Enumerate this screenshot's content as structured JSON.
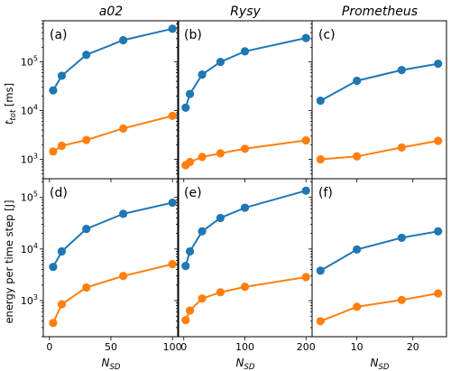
{
  "colors": {
    "series_1": "#1f77b4",
    "series_2": "#ff7f0e",
    "frame": "#000000"
  },
  "figure": {
    "column_titles": [
      "a02",
      "Rysy",
      "Prometheus"
    ],
    "row_ylabels": [
      {
        "main": "t",
        "sub": "tot",
        "rest": " [ms]"
      },
      {
        "main": "energy per time step [J]",
        "sub": "",
        "rest": ""
      }
    ],
    "xlabel": {
      "main": "N",
      "sub": "SD"
    }
  },
  "chart_data": [
    {
      "type": "line",
      "panel": "(a)",
      "title": "a02",
      "xlabel": "N_SD",
      "ylabel": "t_tot [ms]",
      "yscale": "log",
      "xlim": [
        -5,
        105
      ],
      "ylim": [
        400,
        700000
      ],
      "grid": false,
      "legend": "none",
      "xticks": [
        0,
        50,
        100
      ],
      "yticks": [
        1000,
        10000,
        100000
      ],
      "series": [
        {
          "color": "#1f77b4",
          "x": [
            3,
            10,
            30,
            60,
            100
          ],
          "y": [
            26000,
            52000,
            140000,
            280000,
            480000
          ]
        },
        {
          "color": "#ff7f0e",
          "x": [
            3,
            10,
            30,
            60,
            100
          ],
          "y": [
            1450,
            1900,
            2500,
            4300,
            7800
          ]
        }
      ]
    },
    {
      "type": "line",
      "panel": "(b)",
      "title": "Rysy",
      "xlabel": "N_SD",
      "ylabel": "t_tot [ms]",
      "yscale": "log",
      "xlim": [
        -10,
        210
      ],
      "ylim": [
        400,
        700000
      ],
      "grid": false,
      "legend": "none",
      "xticks": [
        0,
        100,
        200
      ],
      "yticks": [
        1000,
        10000,
        100000
      ],
      "series": [
        {
          "color": "#1f77b4",
          "x": [
            3,
            10,
            30,
            60,
            100,
            200
          ],
          "y": [
            11500,
            22000,
            55000,
            100000,
            165000,
            310000
          ]
        },
        {
          "color": "#ff7f0e",
          "x": [
            3,
            10,
            30,
            60,
            100,
            200
          ],
          "y": [
            760,
            880,
            1120,
            1330,
            1650,
            2450
          ]
        }
      ]
    },
    {
      "type": "line",
      "panel": "(c)",
      "title": "Prometheus",
      "xlabel": "N_SD",
      "ylabel": "t_tot [ms]",
      "yscale": "log",
      "xlim": [
        2,
        26
      ],
      "ylim": [
        400,
        700000
      ],
      "grid": false,
      "legend": "none",
      "xticks": [
        10,
        20
      ],
      "yticks": [
        1000,
        10000,
        100000
      ],
      "series": [
        {
          "color": "#1f77b4",
          "x": [
            3.5,
            10,
            18,
            24.5
          ],
          "y": [
            16000,
            41000,
            68000,
            92000
          ]
        },
        {
          "color": "#ff7f0e",
          "x": [
            3.5,
            10,
            18,
            24.5
          ],
          "y": [
            1000,
            1150,
            1750,
            2400
          ]
        }
      ]
    },
    {
      "type": "line",
      "panel": "(d)",
      "title": "",
      "xlabel": "N_SD",
      "ylabel": "energy per time step [J]",
      "yscale": "log",
      "xlim": [
        -5,
        105
      ],
      "ylim": [
        200,
        230000
      ],
      "grid": false,
      "legend": "none",
      "xticks": [
        0,
        50,
        100
      ],
      "yticks": [
        1000,
        10000,
        100000
      ],
      "series": [
        {
          "color": "#1f77b4",
          "x": [
            3,
            10,
            30,
            60,
            100
          ],
          "y": [
            4500,
            9000,
            24500,
            48000,
            79000
          ]
        },
        {
          "color": "#ff7f0e",
          "x": [
            3,
            10,
            30,
            60,
            100
          ],
          "y": [
            370,
            850,
            1800,
            3000,
            5100
          ]
        }
      ]
    },
    {
      "type": "line",
      "panel": "(e)",
      "title": "",
      "xlabel": "N_SD",
      "ylabel": "energy per time step [J]",
      "yscale": "log",
      "xlim": [
        -10,
        210
      ],
      "ylim": [
        200,
        230000
      ],
      "grid": false,
      "legend": "none",
      "xticks": [
        0,
        100,
        200
      ],
      "yticks": [
        1000,
        10000,
        100000
      ],
      "series": [
        {
          "color": "#1f77b4",
          "x": [
            3,
            10,
            30,
            60,
            100,
            200
          ],
          "y": [
            4700,
            9000,
            22000,
            40000,
            63000,
            135000
          ]
        },
        {
          "color": "#ff7f0e",
          "x": [
            3,
            10,
            30,
            60,
            100,
            200
          ],
          "y": [
            420,
            640,
            1100,
            1450,
            1850,
            2850
          ]
        }
      ]
    },
    {
      "type": "line",
      "panel": "(f)",
      "title": "",
      "xlabel": "N_SD",
      "ylabel": "energy per time step [J]",
      "yscale": "log",
      "xlim": [
        2,
        26
      ],
      "ylim": [
        200,
        230000
      ],
      "grid": false,
      "legend": "none",
      "xticks": [
        10,
        20
      ],
      "yticks": [
        1000,
        10000,
        100000
      ],
      "series": [
        {
          "color": "#1f77b4",
          "x": [
            3.5,
            10,
            18,
            24.5
          ],
          "y": [
            3800,
            9800,
            16500,
            22000
          ]
        },
        {
          "color": "#ff7f0e",
          "x": [
            3.5,
            10,
            18,
            24.5
          ],
          "y": [
            400,
            760,
            1030,
            1380
          ]
        }
      ]
    }
  ]
}
